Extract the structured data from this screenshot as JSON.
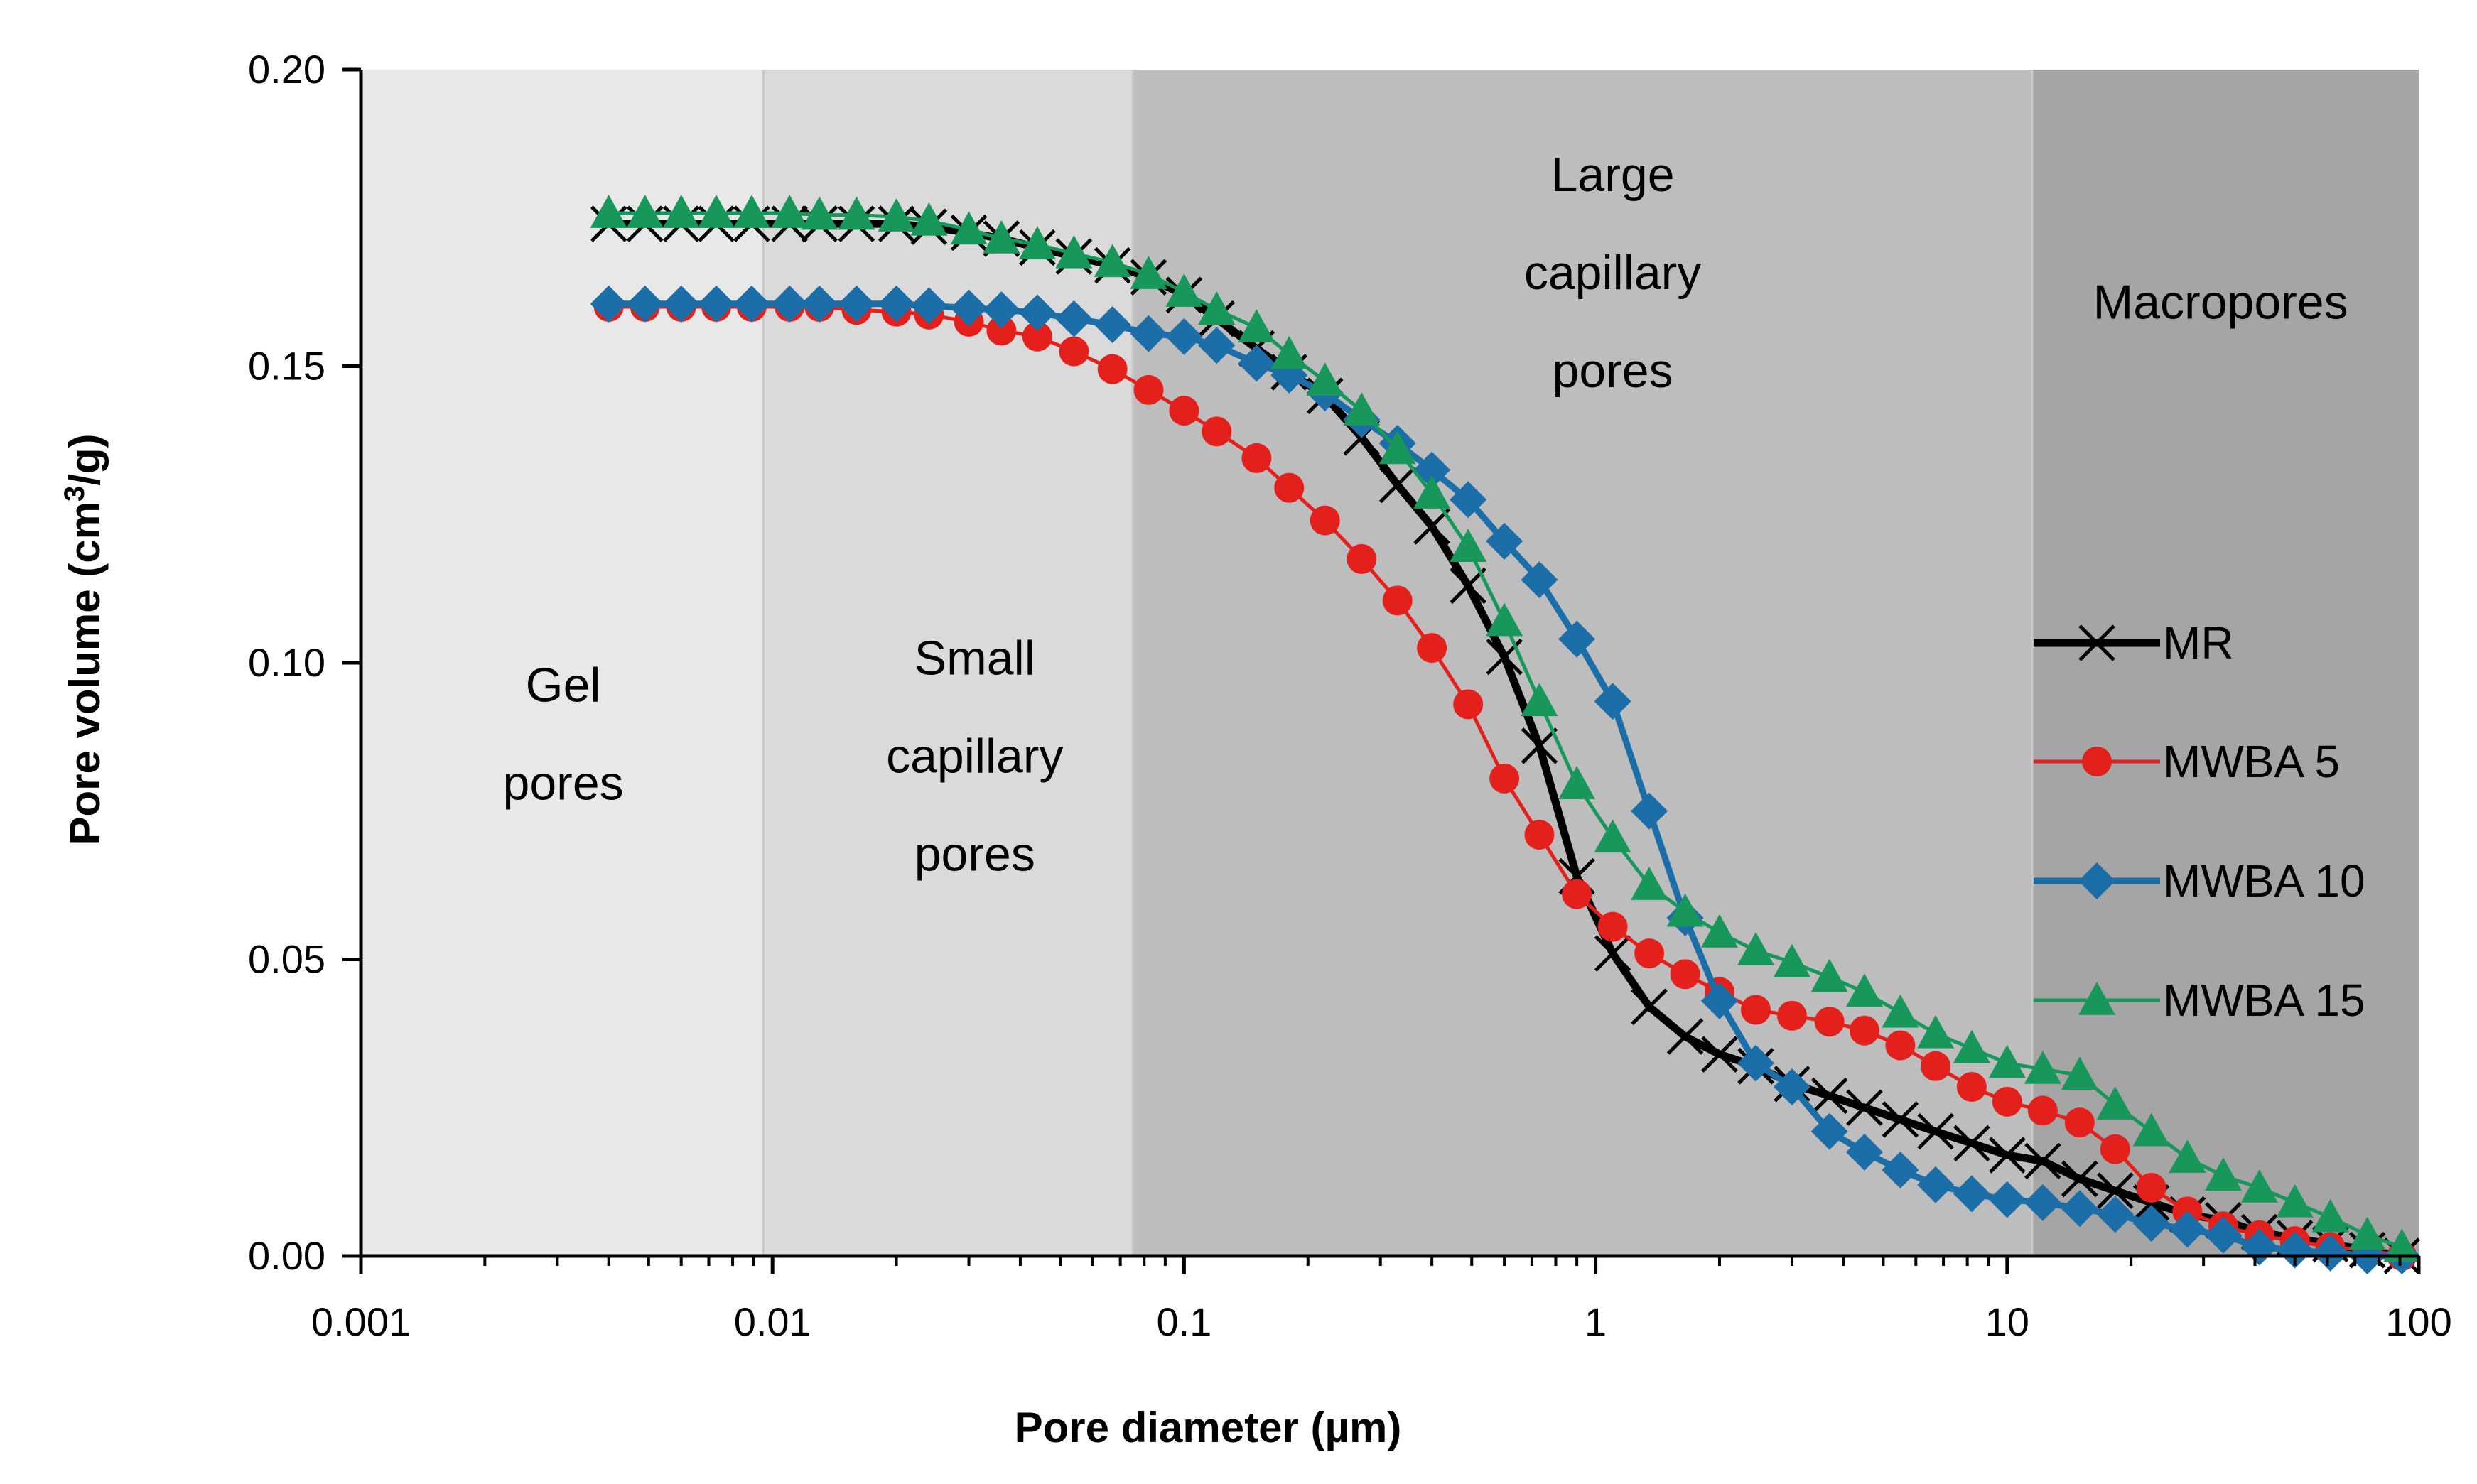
{
  "chart_data": {
    "type": "line",
    "xscale": "log",
    "xlim": [
      0.001,
      100
    ],
    "ylim": [
      0,
      0.2
    ],
    "xlabel": "Pore diameter (µm)",
    "ylabel_main": "Pore volume (cm",
    "ylabel_sup": "3",
    "ylabel_end": "/g)",
    "x_ticks": [
      0.001,
      0.01,
      0.1,
      1,
      10,
      100
    ],
    "x_tick_labels": [
      "0.001",
      "0.01",
      "0.1",
      "1",
      "10",
      "100"
    ],
    "y_ticks": [
      0,
      0.05,
      0.1,
      0.15,
      0.2
    ],
    "y_tick_labels": [
      "0.00",
      "0.05",
      "0.10",
      "0.15",
      "0.20"
    ],
    "regions": [
      {
        "from": 0.001,
        "to": 0.0095,
        "color": "#e8e8e8",
        "lines": [
          "Gel",
          "pores"
        ],
        "label_x": 0.0031,
        "label_y": 0.0935
      },
      {
        "from": 0.0095,
        "to": 0.075,
        "color": "#dadada",
        "lines": [
          "Small",
          "capillary",
          "pores"
        ],
        "label_x": 0.031,
        "label_y": 0.098
      },
      {
        "from": 0.075,
        "to": 11.5,
        "color": "#bdbdbd",
        "lines": [
          "Large",
          "capillary",
          "pores"
        ],
        "label_x": 1.1,
        "label_y": 0.1795
      },
      {
        "from": 11.5,
        "to": 100,
        "color": "#a5a5a5",
        "lines": [
          "Macropores"
        ],
        "label_x": 33,
        "label_y": 0.158
      }
    ],
    "series": [
      {
        "name": "MR",
        "color": "#000000",
        "marker": "x",
        "line_width": 11,
        "points": [
          [
            0.004,
            0.174
          ],
          [
            0.0049,
            0.174
          ],
          [
            0.006,
            0.174
          ],
          [
            0.0073,
            0.174
          ],
          [
            0.0089,
            0.174
          ],
          [
            0.011,
            0.174
          ],
          [
            0.013,
            0.174
          ],
          [
            0.016,
            0.174
          ],
          [
            0.02,
            0.174
          ],
          [
            0.024,
            0.1735
          ],
          [
            0.03,
            0.1725
          ],
          [
            0.036,
            0.1715
          ],
          [
            0.044,
            0.17
          ],
          [
            0.054,
            0.1685
          ],
          [
            0.067,
            0.167
          ],
          [
            0.082,
            0.165
          ],
          [
            0.1,
            0.162
          ],
          [
            0.12,
            0.158
          ],
          [
            0.15,
            0.153
          ],
          [
            0.18,
            0.149
          ],
          [
            0.22,
            0.145
          ],
          [
            0.27,
            0.138
          ],
          [
            0.33,
            0.13
          ],
          [
            0.4,
            0.123
          ],
          [
            0.49,
            0.113
          ],
          [
            0.6,
            0.101
          ],
          [
            0.73,
            0.086
          ],
          [
            0.9,
            0.064
          ],
          [
            1.1,
            0.051
          ],
          [
            1.35,
            0.042
          ],
          [
            1.65,
            0.037
          ],
          [
            2,
            0.034
          ],
          [
            2.45,
            0.032
          ],
          [
            3,
            0.029
          ],
          [
            3.7,
            0.027
          ],
          [
            4.5,
            0.025
          ],
          [
            5.5,
            0.023
          ],
          [
            6.7,
            0.021
          ],
          [
            8.2,
            0.019
          ],
          [
            10,
            0.017
          ],
          [
            12.2,
            0.016
          ],
          [
            15,
            0.013
          ],
          [
            18.3,
            0.011
          ],
          [
            22.4,
            0.009
          ],
          [
            27.4,
            0.007
          ],
          [
            33.5,
            0.006
          ],
          [
            41,
            0.004
          ],
          [
            50,
            0.003
          ],
          [
            61,
            0.002
          ],
          [
            75,
            0.001
          ],
          [
            91,
            0.0
          ]
        ]
      },
      {
        "name": "MWBA 5",
        "color": "#e3201b",
        "marker": "circle",
        "line_width": 5,
        "points": [
          [
            0.004,
            0.16
          ],
          [
            0.0049,
            0.16
          ],
          [
            0.006,
            0.16
          ],
          [
            0.0073,
            0.16
          ],
          [
            0.0089,
            0.16
          ],
          [
            0.011,
            0.16
          ],
          [
            0.013,
            0.16
          ],
          [
            0.016,
            0.1595
          ],
          [
            0.02,
            0.1592
          ],
          [
            0.024,
            0.1587
          ],
          [
            0.03,
            0.1575
          ],
          [
            0.036,
            0.156
          ],
          [
            0.044,
            0.155
          ],
          [
            0.054,
            0.1525
          ],
          [
            0.067,
            0.1495
          ],
          [
            0.082,
            0.146
          ],
          [
            0.1,
            0.1425
          ],
          [
            0.12,
            0.139
          ],
          [
            0.15,
            0.1345
          ],
          [
            0.18,
            0.1295
          ],
          [
            0.22,
            0.124
          ],
          [
            0.27,
            0.1175
          ],
          [
            0.33,
            0.1105
          ],
          [
            0.4,
            0.1025
          ],
          [
            0.49,
            0.093
          ],
          [
            0.6,
            0.0805
          ],
          [
            0.73,
            0.071
          ],
          [
            0.9,
            0.061
          ],
          [
            1.1,
            0.0555
          ],
          [
            1.35,
            0.051
          ],
          [
            1.65,
            0.0475
          ],
          [
            2,
            0.0445
          ],
          [
            2.45,
            0.0415
          ],
          [
            3,
            0.0405
          ],
          [
            3.7,
            0.0395
          ],
          [
            4.5,
            0.038
          ],
          [
            5.5,
            0.0355
          ],
          [
            6.7,
            0.032
          ],
          [
            8.2,
            0.0285
          ],
          [
            10,
            0.026
          ],
          [
            12.2,
            0.0245
          ],
          [
            15,
            0.0225
          ],
          [
            18.3,
            0.018
          ],
          [
            22.4,
            0.0115
          ],
          [
            27.4,
            0.0075
          ],
          [
            33.5,
            0.005
          ],
          [
            41,
            0.0035
          ],
          [
            50,
            0.0025
          ],
          [
            61,
            0.0015
          ],
          [
            75,
            0.001
          ],
          [
            91,
            0.0
          ]
        ]
      },
      {
        "name": "MWBA 10",
        "color": "#1b6ea8",
        "marker": "diamond",
        "line_width": 9,
        "points": [
          [
            0.004,
            0.1605
          ],
          [
            0.0049,
            0.1605
          ],
          [
            0.006,
            0.1605
          ],
          [
            0.0073,
            0.1605
          ],
          [
            0.0089,
            0.1605
          ],
          [
            0.011,
            0.1605
          ],
          [
            0.013,
            0.1605
          ],
          [
            0.016,
            0.1605
          ],
          [
            0.02,
            0.1605
          ],
          [
            0.024,
            0.1602
          ],
          [
            0.03,
            0.1598
          ],
          [
            0.036,
            0.1595
          ],
          [
            0.044,
            0.159
          ],
          [
            0.054,
            0.158
          ],
          [
            0.067,
            0.157
          ],
          [
            0.082,
            0.1555
          ],
          [
            0.1,
            0.155
          ],
          [
            0.12,
            0.1535
          ],
          [
            0.15,
            0.1505
          ],
          [
            0.18,
            0.1485
          ],
          [
            0.22,
            0.1455
          ],
          [
            0.27,
            0.141
          ],
          [
            0.33,
            0.137
          ],
          [
            0.4,
            0.1325
          ],
          [
            0.49,
            0.1275
          ],
          [
            0.6,
            0.1205
          ],
          [
            0.73,
            0.114
          ],
          [
            0.9,
            0.104
          ],
          [
            1.1,
            0.0935
          ],
          [
            1.35,
            0.075
          ],
          [
            1.65,
            0.057
          ],
          [
            2,
            0.043
          ],
          [
            2.45,
            0.0325
          ],
          [
            3,
            0.0285
          ],
          [
            3.7,
            0.021
          ],
          [
            4.5,
            0.0175
          ],
          [
            5.5,
            0.0145
          ],
          [
            6.7,
            0.012
          ],
          [
            8.2,
            0.0105
          ],
          [
            10,
            0.0095
          ],
          [
            12.2,
            0.009
          ],
          [
            15,
            0.008
          ],
          [
            18.3,
            0.007
          ],
          [
            22.4,
            0.0055
          ],
          [
            27.4,
            0.0045
          ],
          [
            33.5,
            0.0035
          ],
          [
            41,
            0.0015
          ],
          [
            50,
            0.001
          ],
          [
            61,
            0.0005
          ],
          [
            75,
            0.0
          ],
          [
            91,
            0.0
          ]
        ]
      },
      {
        "name": "MWBA 15",
        "color": "#18975a",
        "marker": "triangle",
        "line_width": 5,
        "points": [
          [
            0.004,
            0.1758
          ],
          [
            0.0049,
            0.1758
          ],
          [
            0.006,
            0.1758
          ],
          [
            0.0073,
            0.1758
          ],
          [
            0.0089,
            0.1758
          ],
          [
            0.011,
            0.1758
          ],
          [
            0.013,
            0.1755
          ],
          [
            0.016,
            0.1755
          ],
          [
            0.02,
            0.1752
          ],
          [
            0.024,
            0.1745
          ],
          [
            0.03,
            0.173
          ],
          [
            0.036,
            0.1715
          ],
          [
            0.044,
            0.1705
          ],
          [
            0.054,
            0.169
          ],
          [
            0.067,
            0.1675
          ],
          [
            0.082,
            0.1655
          ],
          [
            0.1,
            0.1625
          ],
          [
            0.12,
            0.1595
          ],
          [
            0.15,
            0.1565
          ],
          [
            0.18,
            0.152
          ],
          [
            0.22,
            0.1475
          ],
          [
            0.27,
            0.1425
          ],
          [
            0.33,
            0.136
          ],
          [
            0.4,
            0.1285
          ],
          [
            0.49,
            0.1195
          ],
          [
            0.6,
            0.107
          ],
          [
            0.73,
            0.0935
          ],
          [
            0.9,
            0.0795
          ],
          [
            1.1,
            0.0705
          ],
          [
            1.35,
            0.0625
          ],
          [
            1.65,
            0.058
          ],
          [
            2,
            0.0545
          ],
          [
            2.45,
            0.0515
          ],
          [
            3,
            0.0495
          ],
          [
            3.7,
            0.047
          ],
          [
            4.5,
            0.0445
          ],
          [
            5.5,
            0.041
          ],
          [
            6.7,
            0.0375
          ],
          [
            8.2,
            0.035
          ],
          [
            10,
            0.0325
          ],
          [
            12.2,
            0.0315
          ],
          [
            15,
            0.0305
          ],
          [
            18.3,
            0.0255
          ],
          [
            22.4,
            0.021
          ],
          [
            27.4,
            0.0165
          ],
          [
            33.5,
            0.0135
          ],
          [
            41,
            0.0115
          ],
          [
            50,
            0.009
          ],
          [
            61,
            0.0065
          ],
          [
            75,
            0.0035
          ],
          [
            91,
            0.0015
          ]
        ]
      }
    ],
    "legend_placement": "right"
  }
}
